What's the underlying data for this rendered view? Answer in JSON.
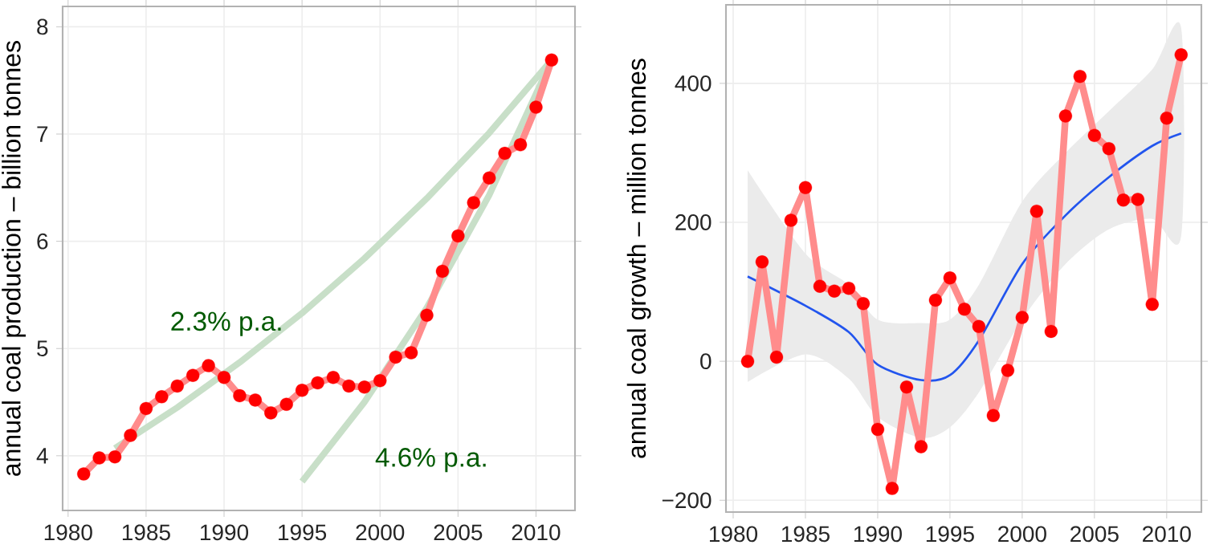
{
  "chart_data": [
    {
      "type": "line",
      "ylabel": "annual coal production – billion tonnes",
      "xlim": [
        1979.65,
        2012.5
      ],
      "ylim": [
        3.49,
        8.19
      ],
      "xticks": [
        1980,
        1985,
        1990,
        1995,
        2000,
        2005,
        2010
      ],
      "yticks": [
        4,
        5,
        6,
        7,
        8
      ],
      "grid": true,
      "x": [
        1981,
        1982,
        1983,
        1984,
        1985,
        1986,
        1987,
        1988,
        1989,
        1990,
        1991,
        1992,
        1993,
        1994,
        1995,
        1996,
        1997,
        1998,
        1999,
        2000,
        2001,
        2002,
        2003,
        2004,
        2005,
        2006,
        2007,
        2008,
        2009,
        2010,
        2011
      ],
      "series": [
        {
          "x": [
            1983,
            1987,
            1991,
            1995,
            1999,
            2003,
            2007,
            2011
          ],
          "values": [
            4.07,
            4.45,
            4.87,
            5.33,
            5.84,
            6.4,
            7.01,
            7.69
          ],
          "color": "#c8dfc8"
        },
        {
          "x": [
            1995,
            1999,
            2003,
            2007,
            2011
          ],
          "values": [
            3.76,
            4.5,
            5.38,
            6.43,
            7.69
          ],
          "color": "#c8dfc8"
        },
        {
          "marker": "circle",
          "color": "#ff0000",
          "values": [
            3.83,
            3.98,
            3.99,
            4.19,
            4.44,
            4.55,
            4.65,
            4.75,
            4.84,
            4.73,
            4.56,
            4.52,
            4.4,
            4.48,
            4.61,
            4.68,
            4.73,
            4.65,
            4.64,
            4.7,
            4.92,
            4.96,
            5.31,
            5.72,
            6.05,
            6.36,
            6.59,
            6.82,
            6.9,
            7.25,
            7.69
          ]
        }
      ],
      "annotations": [
        "2.3% p.a.",
        "4.6% p.a."
      ]
    },
    {
      "type": "line",
      "ylabel": "annual coal growth – million tonnes",
      "xlim": [
        1979.5,
        2012.4
      ],
      "ylim": [
        -217,
        513
      ],
      "xticks": [
        1980,
        1985,
        1990,
        1995,
        2000,
        2005,
        2010
      ],
      "yticks": [
        {
          "value": -200,
          "label": "−200"
        },
        0,
        200,
        400
      ],
      "grid": true,
      "x": [
        1981,
        1982,
        1983,
        1984,
        1985,
        1986,
        1987,
        1988,
        1989,
        1990,
        1991,
        1992,
        1993,
        1994,
        1995,
        1996,
        1997,
        1998,
        1999,
        2000,
        2001,
        2002,
        2003,
        2004,
        2005,
        2006,
        2007,
        2008,
        2009,
        2010,
        2011
      ],
      "series": [
        {
          "x": [
            1981,
            1985,
            1988,
            1990,
            1993,
            1995,
            1997,
            2000,
            2003,
            2006,
            2009,
            2011
          ],
          "values": [
            122,
            80,
            42,
            -5,
            -27,
            -20,
            30,
            140,
            210,
            265,
            310,
            328
          ],
          "lower": [
            -30,
            10,
            -25,
            -80,
            -110,
            -95,
            -45,
            60,
            140,
            190,
            205,
            180
          ],
          "upper": [
            275,
            155,
            110,
            60,
            55,
            60,
            110,
            230,
            300,
            360,
            420,
            480
          ],
          "color": "#2255ee"
        },
        {
          "marker": "circle",
          "color": "#ff0000",
          "values": [
            0,
            143,
            6,
            203,
            250,
            108,
            101,
            105,
            83,
            -98,
            -183,
            -37,
            -123,
            88,
            120,
            75,
            50,
            -78,
            -13,
            63,
            216,
            43,
            353,
            410,
            325,
            306,
            232,
            233,
            82,
            350,
            441
          ]
        }
      ]
    }
  ]
}
